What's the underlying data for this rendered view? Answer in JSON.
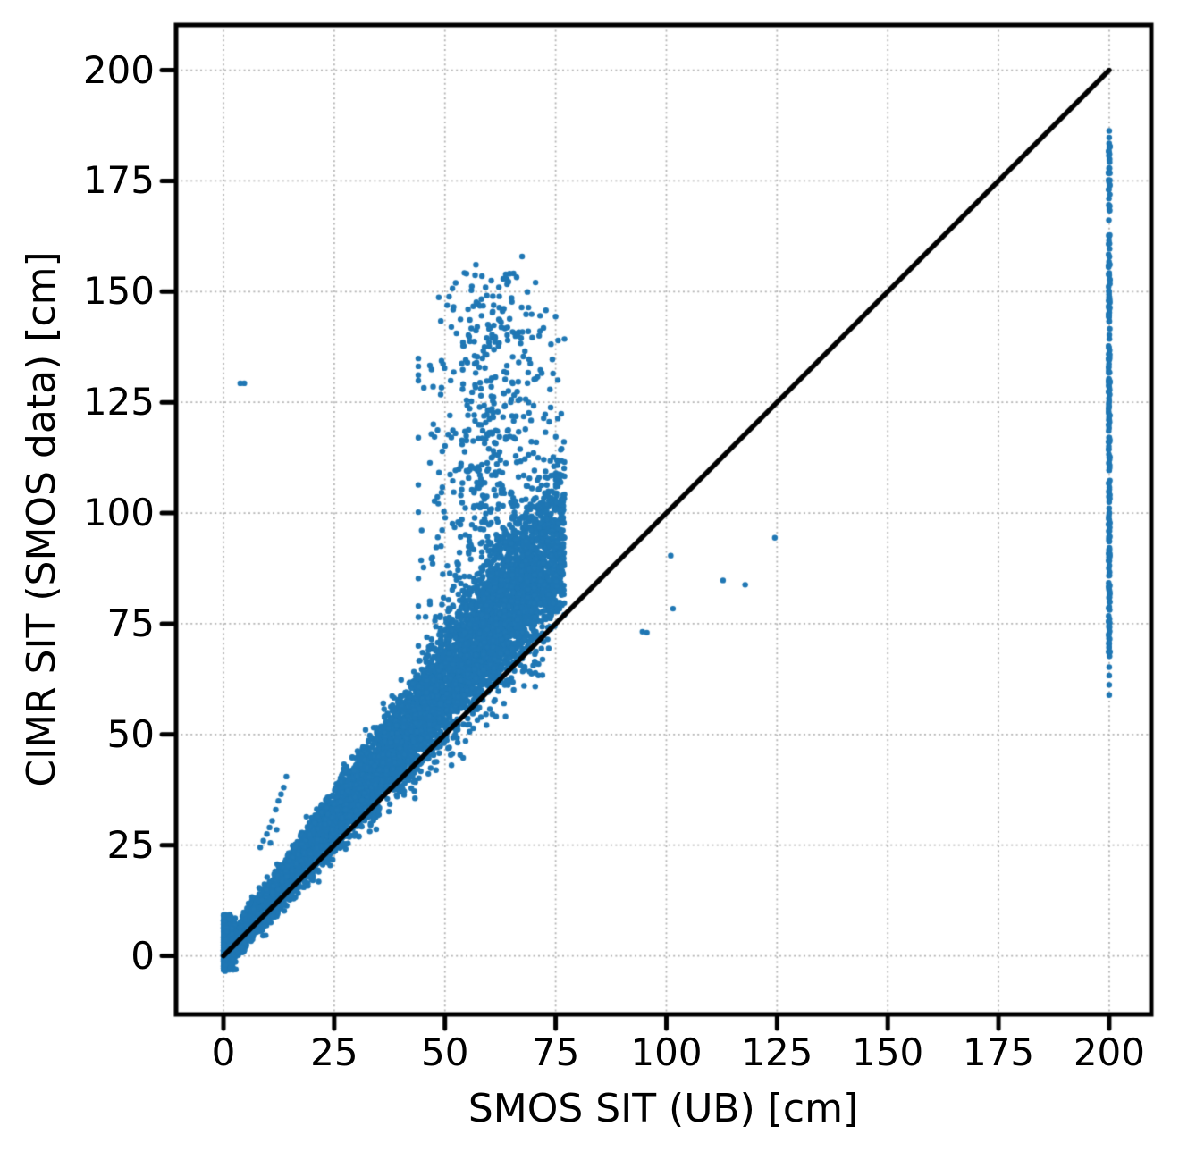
{
  "figure": {
    "background": "#ffffff",
    "title": ""
  },
  "chart_data": {
    "type": "scatter",
    "title": "",
    "xlabel": "SMOS SIT (UB) [cm]",
    "ylabel": "CIMR SIT (SMOS data) [cm]",
    "xlim": [
      -10.7,
      209.5
    ],
    "ylim": [
      -13.2,
      210.2
    ],
    "xticks": [
      0,
      25,
      50,
      75,
      100,
      125,
      150,
      175,
      200
    ],
    "yticks": [
      0,
      25,
      50,
      75,
      100,
      125,
      150,
      175,
      200
    ],
    "grid": {
      "on": true,
      "style": "dotted",
      "color": "#b4b4b4",
      "width": 1.8
    },
    "axes_color": "#000000",
    "spine_width": 5,
    "tick": {
      "length": 14,
      "width": 5
    },
    "point": {
      "color": "#1f77b4",
      "radius": 3.2
    },
    "identity_line": {
      "from": [
        0,
        0
      ],
      "to": [
        200,
        200
      ],
      "color": "#000000",
      "width": 5.5
    },
    "legend": null,
    "description": "CIMR-retrieved sea-ice thickness vs SMOS (UB) sea-ice thickness in cm. Dense cloud lies mostly above the 1:1 line for SMOS SIT 0-77 cm with a retrieval plume reaching ~158 cm, isolated outliers near (4,129) and (95-125, 73-95), and a saturated vertical stripe at SMOS SIT = 200 cm spanning ~59-186 cm.",
    "seed": 7,
    "point_clusters": [
      {
        "name": "main-band",
        "type": "band",
        "count": 8200,
        "x_max": 77,
        "x_pow": 1.12,
        "m_min": 0.98,
        "m_mode": 1.17,
        "m_max": 1.52,
        "noise_sd": 1.7,
        "y_min_clip": -3.5
      },
      {
        "name": "below-line-fringe",
        "type": "band",
        "count": 230,
        "x_max": 73,
        "x_pow": 1.0,
        "m_min": 0.84,
        "m_mode": 0.95,
        "m_max": 1.03,
        "noise_sd": 1.0,
        "y_min_clip": -3.5
      },
      {
        "name": "origin-smear",
        "type": "box",
        "count": 300,
        "x0": 0,
        "x1": 2.8,
        "x_pow": 1.8,
        "y0": -3.2,
        "y1": 9.3,
        "y_pow": 1.2
      },
      {
        "name": "thick-ice-plume",
        "type": "plume",
        "count": 680,
        "x_mean": 60,
        "x_sd": 7.2,
        "x_min": 44,
        "x_max": 77,
        "top_center": 153,
        "top_x0": 60,
        "top_x_scale": 22,
        "top_curve": 18,
        "top_sd": 4,
        "base_slope": 1.32,
        "y_pow": 1.4,
        "y_max_clip": 158.5
      },
      {
        "name": "smos-saturation-column",
        "type": "column",
        "count": 240,
        "x": 200,
        "x_jitter": 0.16,
        "y0": 67.5,
        "y1": 183.5
      }
    ],
    "outlier_points": [
      [
        3.8,
        129.3
      ],
      [
        4.7,
        129.3
      ],
      [
        94.6,
        73.2
      ],
      [
        95.6,
        73.0
      ],
      [
        101.0,
        90.4
      ],
      [
        101.5,
        78.4
      ],
      [
        112.8,
        84.8
      ],
      [
        117.8,
        83.8
      ],
      [
        124.5,
        94.4
      ],
      [
        200,
        186.3
      ],
      [
        200,
        184.8
      ],
      [
        200,
        65.2
      ],
      [
        200,
        63.3
      ],
      [
        200,
        61.2
      ],
      [
        200,
        58.9
      ],
      [
        8.3,
        24.5
      ],
      [
        9.0,
        26.0
      ],
      [
        9.8,
        27.5
      ],
      [
        10.4,
        29.0
      ],
      [
        11.0,
        30.5
      ],
      [
        11.8,
        33.0
      ],
      [
        12.4,
        35.0
      ],
      [
        13.0,
        36.5
      ],
      [
        13.6,
        38.0
      ],
      [
        14.2,
        40.5
      ],
      [
        12.0,
        28.5
      ],
      [
        10.6,
        25.5
      ]
    ]
  }
}
